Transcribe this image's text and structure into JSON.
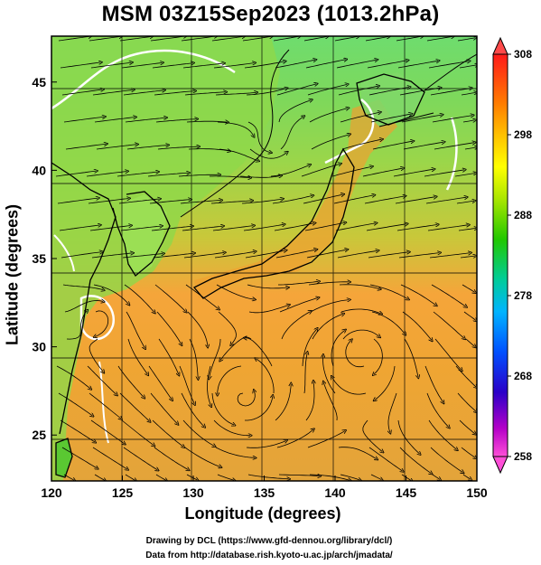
{
  "title": "MSM 03Z15Sep2023 (1013.2hPa)",
  "axes": {
    "xlabel": "Longitude (degrees)",
    "ylabel": "Latitude  (degrees)",
    "x_ticks": [
      "120",
      "125",
      "130",
      "135",
      "140",
      "145",
      "150"
    ],
    "y_ticks": [
      "25",
      "30",
      "35",
      "40",
      "45"
    ]
  },
  "colorbar": {
    "labels": [
      "308",
      "298",
      "288",
      "278",
      "268",
      "258"
    ],
    "colors": [
      "#ff0000",
      "#ff6a00",
      "#ffbe00",
      "#ffff00",
      "#9be600",
      "#22c800",
      "#00d2a0",
      "#00b4ff",
      "#0040ff",
      "#2a00c8",
      "#c800c8",
      "#ff4fd8"
    ]
  },
  "chart_data": {
    "type": "heatmap",
    "title": "MSM 03Z15Sep2023 (1013.2hPa)",
    "xlabel": "Longitude (degrees)",
    "ylabel": "Latitude  (degrees)",
    "xlim": [
      120,
      150
    ],
    "ylim": [
      22.4,
      47.6
    ],
    "colorbar_range": [
      258,
      308
    ],
    "colorbar_ticks": [
      258,
      268,
      278,
      288,
      298,
      308
    ]
  },
  "credits": {
    "line1": "Drawing by DCL (https://www.gfd-dennou.org/library/dcl/)",
    "line2": "Data from http://database.rish.kyoto-u.ac.jp/arch/jmadata/"
  }
}
